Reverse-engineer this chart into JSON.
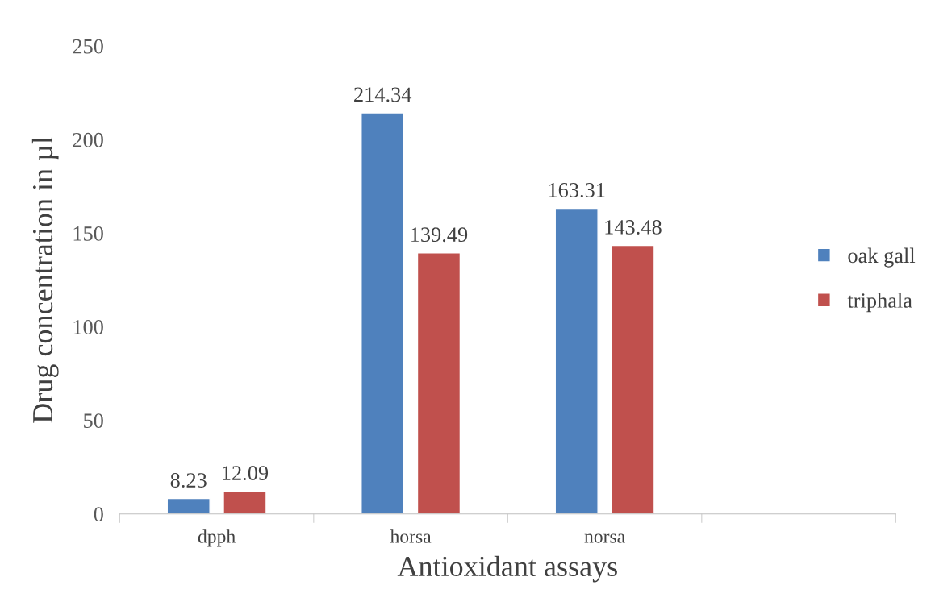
{
  "chart_data": {
    "type": "bar",
    "xlabel": "Antioxidant assays",
    "ylabel": "Drug concentration in µl",
    "categories": [
      "dpph",
      "horsa",
      "norsa",
      null
    ],
    "series": [
      {
        "name": "oak gall",
        "color": "#4f81bd",
        "values": [
          8.23,
          214.34,
          163.31,
          null
        ]
      },
      {
        "name": "triphala",
        "color": "#c0504d",
        "values": [
          12.09,
          139.49,
          143.48,
          null
        ]
      }
    ],
    "ylim": [
      0,
      250
    ],
    "yticks": [
      0,
      50,
      100,
      150,
      200,
      250
    ],
    "grid": false,
    "legend": "right",
    "data_labels": true
  }
}
